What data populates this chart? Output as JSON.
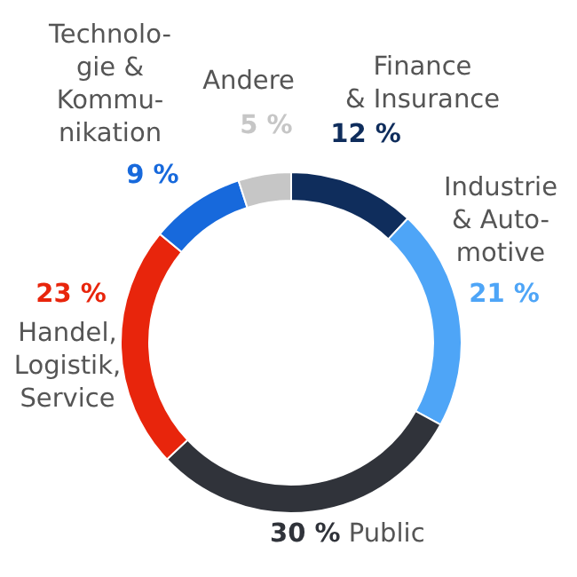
{
  "chart_data": {
    "type": "donut",
    "categories": [
      "Finance\n& Insurance",
      "Industrie\n& Auto-\nmotive",
      "Public",
      "Handel,\nLogistik,\nService",
      "Technolo-\ngie &\nKommu-\nnikation",
      "Andere"
    ],
    "values": [
      12,
      21,
      30,
      23,
      9,
      5
    ],
    "value_labels": [
      "12 %",
      "21 %",
      "30 %",
      "23 %",
      "9 %",
      "5 %"
    ],
    "colors": [
      "#0f2d5c",
      "#4ea5f7",
      "#30333a",
      "#e8250c",
      "#1769dc",
      "#c6c6c6"
    ]
  }
}
